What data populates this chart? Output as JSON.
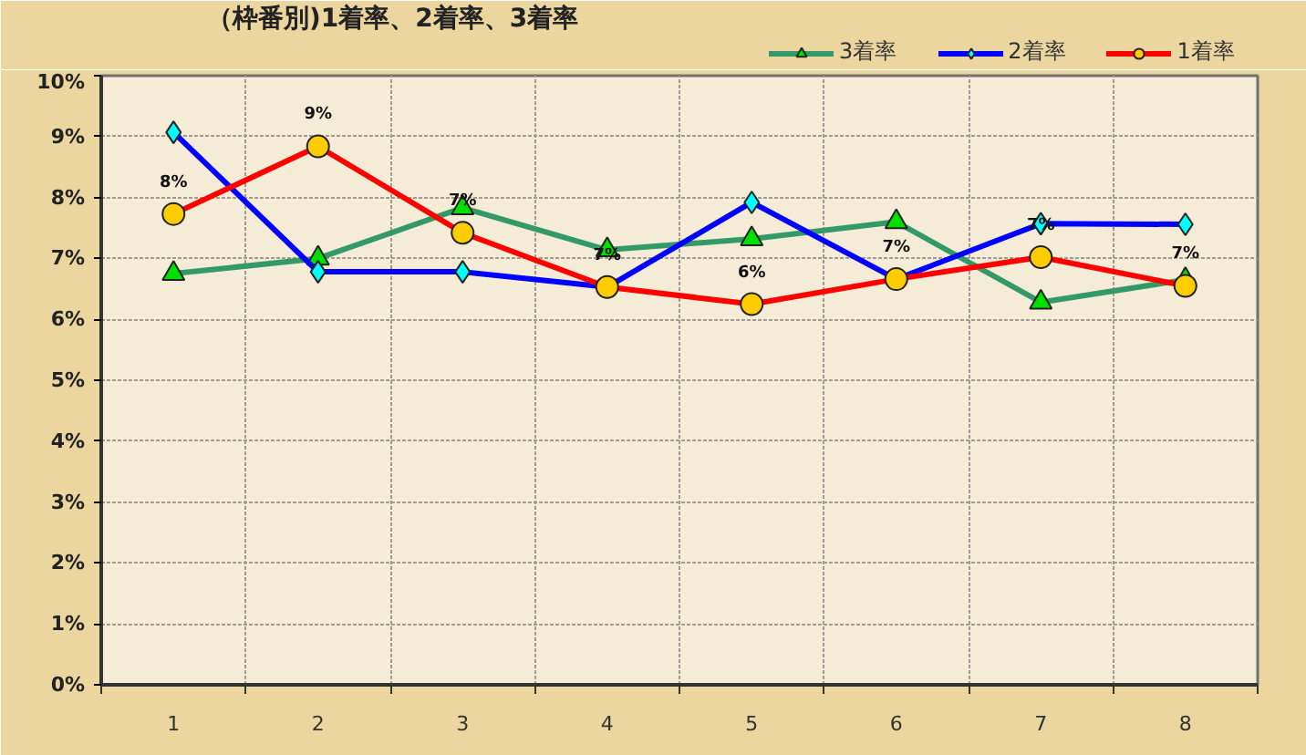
{
  "chart_data": {
    "type": "line",
    "title": "（枠番別)1着率、2着率、3着率",
    "categories": [
      "1",
      "2",
      "3",
      "4",
      "5",
      "6",
      "7",
      "8"
    ],
    "series": [
      {
        "name": "3着率",
        "color": "#339966",
        "colors": [
          "#00e000",
          "#00e000",
          "#00e000",
          "#00e000",
          "#00e000",
          "#00e000",
          "#00e000",
          "#00e000"
        ],
        "marker": "triangle",
        "values": [
          6.75,
          7.0,
          7.83,
          7.14,
          7.32,
          7.6,
          6.28,
          6.65
        ]
      },
      {
        "name": "2着率",
        "color": "#0000ff",
        "colors": [
          "#00ffff",
          "#00ffff",
          "#00ffff",
          "#00ffff",
          "#00ffff",
          "#00ffff",
          "#00ffff",
          "#00ffff"
        ],
        "marker": "diamond",
        "values": [
          9.07,
          6.78,
          6.78,
          6.53,
          7.92,
          6.66,
          7.57,
          7.56
        ]
      },
      {
        "name": "1着率",
        "color": "#ff0000",
        "colors": [
          "#ffcc00",
          "#ffcc00",
          "#ffcc00",
          "#ffcc00",
          "#ffcc00",
          "#ffcc00",
          "#ffcc00",
          "#ffcc00"
        ],
        "marker": "circle",
        "values": [
          7.73,
          8.84,
          7.42,
          6.53,
          6.25,
          6.66,
          7.02,
          6.55
        ],
        "value_labels": [
          "8%",
          "9%",
          "7%",
          "7%",
          "6%",
          "7%",
          "7%",
          "7%"
        ]
      }
    ],
    "ylim": [
      0,
      10
    ],
    "yticks": [
      {
        "value": 0,
        "label": "0%"
      },
      {
        "value": 1,
        "label": "1%"
      },
      {
        "value": 2,
        "label": "2%"
      },
      {
        "value": 3,
        "label": "3%"
      },
      {
        "value": 4,
        "label": "4%"
      },
      {
        "value": 5,
        "label": "5%"
      },
      {
        "value": 6,
        "label": "6%"
      },
      {
        "value": 7,
        "label": "7%"
      },
      {
        "value": 8,
        "label": "8%"
      },
      {
        "value": 9,
        "label": "9%"
      },
      {
        "value": 10,
        "label": "10%"
      }
    ],
    "grid": true,
    "legend": "top right",
    "line_style": "solid"
  }
}
